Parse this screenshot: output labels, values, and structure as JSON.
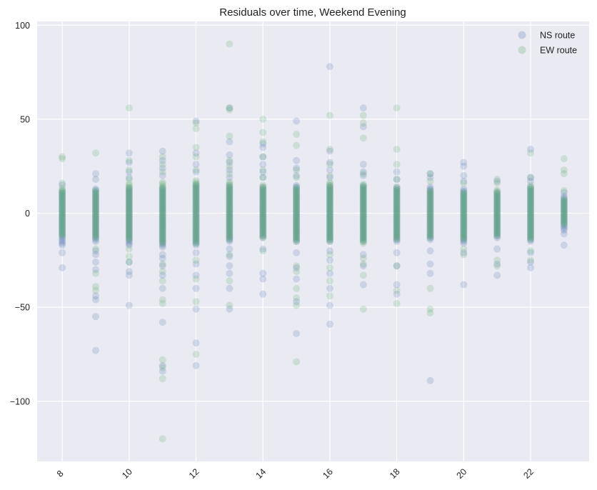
{
  "chart_data": {
    "type": "scatter",
    "title": "Residuals over time, Weekend Evening",
    "xlabel": "",
    "ylabel": "",
    "xlim": [
      7.25,
      23.75
    ],
    "ylim": [
      -132,
      102
    ],
    "xticks": [
      8,
      10,
      12,
      14,
      16,
      18,
      20,
      22
    ],
    "yticks": [
      -100,
      -50,
      0,
      50,
      100
    ],
    "xtick_labels": [
      "8",
      "10",
      "12",
      "14",
      "16",
      "18",
      "20",
      "22"
    ],
    "ytick_labels": [
      "−100",
      "−50",
      "0",
      "50",
      "100"
    ],
    "grid": true,
    "legend_position": "top-right",
    "background": "#EAEAF2",
    "series": [
      {
        "name": "NS route",
        "color": "#4C72B0",
        "alpha": 0.2,
        "columns": [
          {
            "x": 8,
            "core": [
              -17,
              12
            ],
            "outliers": [
              -29,
              -21,
              15
            ]
          },
          {
            "x": 9,
            "core": [
              -15,
              13
            ],
            "outliers": [
              -73,
              -55,
              -46,
              -44,
              -30,
              -26,
              -22,
              -20,
              18,
              21
            ]
          },
          {
            "x": 10,
            "core": [
              -17,
              14
            ],
            "outliers": [
              -49,
              -33,
              -31,
              -26,
              19,
              22,
              27,
              32
            ]
          },
          {
            "x": 11,
            "core": [
              -18,
              14
            ],
            "outliers": [
              -84,
              -81,
              -58,
              -40,
              -33,
              -28,
              -24,
              -22,
              20,
              24,
              28,
              33
            ]
          },
          {
            "x": 12,
            "core": [
              -17,
              16
            ],
            "outliers": [
              -81,
              -69,
              -51,
              -40,
              -33,
              -27,
              -21,
              22,
              26,
              32,
              49
            ]
          },
          {
            "x": 13,
            "core": [
              -15,
              15
            ],
            "outliers": [
              -51,
              -40,
              -32,
              -28,
              -23,
              -19,
              19,
              23,
              27,
              31,
              38,
              56
            ]
          },
          {
            "x": 14,
            "core": [
              -13,
              14
            ],
            "outliers": [
              -43,
              -35,
              -32,
              -19,
              19,
              22,
              26,
              30,
              35,
              37
            ]
          },
          {
            "x": 15,
            "core": [
              -15,
              15
            ],
            "outliers": [
              -64,
              -47,
              -35,
              -29,
              -21,
              20,
              24,
              28,
              49
            ]
          },
          {
            "x": 16,
            "core": [
              -15,
              15
            ],
            "outliers": [
              -59,
              -49,
              -40,
              -32,
              -25,
              -20,
              19,
              23,
              27,
              33,
              78
            ]
          },
          {
            "x": 17,
            "core": [
              -15,
              15
            ],
            "outliers": [
              -38,
              -28,
              -22,
              20,
              22,
              26,
              46,
              56
            ]
          },
          {
            "x": 18,
            "core": [
              -15,
              14
            ],
            "outliers": [
              -43,
              -38,
              -28,
              -21,
              18,
              22
            ]
          },
          {
            "x": 19,
            "core": [
              -14,
              14
            ],
            "outliers": [
              -89,
              -32,
              -27,
              -20,
              19,
              21
            ]
          },
          {
            "x": 20,
            "core": [
              -16,
              13
            ],
            "outliers": [
              -38,
              -21,
              17,
              20,
              25,
              27
            ]
          },
          {
            "x": 21,
            "core": [
              -13,
              12
            ],
            "outliers": [
              -33,
              -27,
              -19,
              17
            ]
          },
          {
            "x": 22,
            "core": [
              -15,
              14
            ],
            "outliers": [
              -29,
              -26,
              -21,
              17,
              19,
              34
            ]
          },
          {
            "x": 23,
            "core": [
              -9,
              9
            ],
            "outliers": [
              -17,
              -11,
              11
            ]
          }
        ]
      },
      {
        "name": "EW route",
        "color": "#55A868",
        "alpha": 0.2,
        "columns": [
          {
            "x": 8,
            "core": [
              -12,
              14
            ],
            "outliers": [
              16,
              29,
              30
            ]
          },
          {
            "x": 9,
            "core": [
              -13,
              13
            ],
            "outliers": [
              -41,
              -39,
              -32,
              -19,
              32
            ]
          },
          {
            "x": 10,
            "core": [
              -14,
              16
            ],
            "outliers": [
              -26,
              -23,
              -19,
              18,
              23,
              28,
              56
            ]
          },
          {
            "x": 11,
            "core": [
              -16,
              17
            ],
            "outliers": [
              -120,
              -88,
              -82,
              -78,
              -48,
              -46,
              -36,
              -31,
              -27,
              22,
              26,
              30
            ]
          },
          {
            "x": 12,
            "core": [
              -16,
              18
            ],
            "outliers": [
              -75,
              -47,
              -35,
              -25,
              23,
              30,
              35,
              45,
              48
            ]
          },
          {
            "x": 13,
            "core": [
              -14,
              17
            ],
            "outliers": [
              -49,
              -36,
              -22,
              21,
              25,
              28,
              41,
              55,
              56,
              90
            ]
          },
          {
            "x": 14,
            "core": [
              -13,
              15
            ],
            "outliers": [
              -20,
              19,
              23,
              30,
              38,
              43,
              50
            ]
          },
          {
            "x": 15,
            "core": [
              -15,
              14
            ],
            "outliers": [
              -79,
              -49,
              -45,
              -40,
              -31,
              -28,
              19,
              23,
              36,
              42
            ]
          },
          {
            "x": 16,
            "core": [
              -15,
              17
            ],
            "outliers": [
              -44,
              -36,
              -29,
              -22,
              20,
              26,
              34,
              52
            ]
          },
          {
            "x": 17,
            "core": [
              -16,
              16
            ],
            "outliers": [
              -51,
              -33,
              -27,
              -24,
              21,
              40,
              48,
              52
            ]
          },
          {
            "x": 18,
            "core": [
              -14,
              14
            ],
            "outliers": [
              -48,
              -41,
              -28,
              18,
              26,
              34,
              56
            ]
          },
          {
            "x": 19,
            "core": [
              -13,
              13
            ],
            "outliers": [
              -53,
              -51,
              -40,
              17,
              21
            ]
          },
          {
            "x": 20,
            "core": [
              -14,
              12
            ],
            "outliers": [
              -22,
              -19,
              16
            ]
          },
          {
            "x": 21,
            "core": [
              -12,
              13
            ],
            "outliers": [
              -28,
              -25,
              16,
              18
            ]
          },
          {
            "x": 22,
            "core": [
              -14,
              15
            ],
            "outliers": [
              -25,
              -20,
              19,
              32
            ]
          },
          {
            "x": 23,
            "core": [
              -6,
              8
            ],
            "outliers": [
              12,
              21,
              23,
              29
            ]
          }
        ]
      }
    ]
  }
}
